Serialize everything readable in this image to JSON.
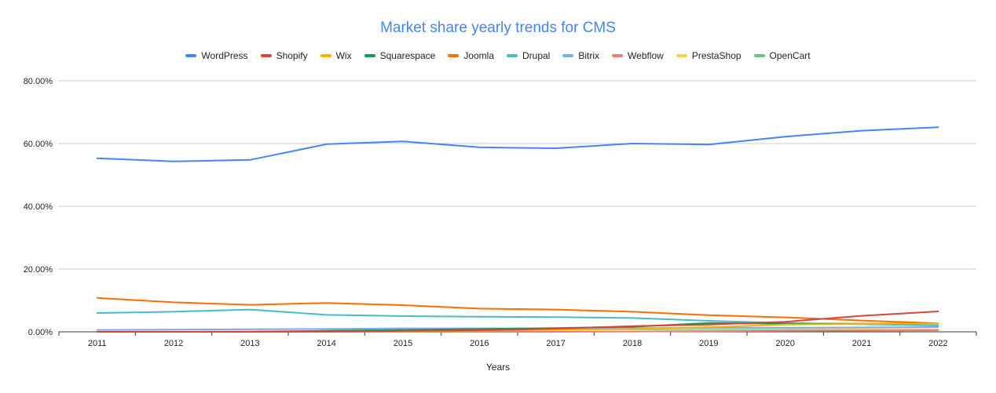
{
  "chart_data": {
    "type": "line",
    "title": "Market share yearly trends for CMS",
    "xlabel": "Years",
    "ylabel": "",
    "x": [
      "2011",
      "2012",
      "2013",
      "2014",
      "2015",
      "2016",
      "2017",
      "2018",
      "2019",
      "2020",
      "2021",
      "2022"
    ],
    "ylim": [
      0,
      80
    ],
    "yticks": [
      0,
      20,
      40,
      60,
      80
    ],
    "ytick_labels": [
      "0.00%",
      "20.00%",
      "40.00%",
      "60.00%",
      "80.00%"
    ],
    "grid": true,
    "legend": "top-center",
    "series": [
      {
        "name": "WordPress",
        "color": "#4285F4",
        "values": [
          55.3,
          54.3,
          54.8,
          59.8,
          60.7,
          58.8,
          58.5,
          60.0,
          59.7,
          62.2,
          64.1,
          65.2
        ]
      },
      {
        "name": "Shopify",
        "color": "#DB4437",
        "values": [
          0.0,
          0.0,
          0.0,
          0.1,
          0.3,
          0.5,
          1.0,
          1.8,
          2.3,
          3.2,
          5.1,
          6.5
        ]
      },
      {
        "name": "Wix",
        "color": "#F4B400",
        "values": [
          0.0,
          0.0,
          0.0,
          0.1,
          0.2,
          0.4,
          0.6,
          0.9,
          1.5,
          2.3,
          2.5,
          2.6
        ]
      },
      {
        "name": "Squarespace",
        "color": "#0F9D58",
        "values": [
          0.0,
          0.0,
          0.0,
          0.3,
          0.6,
          0.9,
          1.2,
          1.6,
          2.8,
          2.6,
          2.6,
          2.6
        ]
      },
      {
        "name": "Joomla",
        "color": "#FF6D01",
        "values": [
          10.8,
          9.4,
          8.6,
          9.2,
          8.5,
          7.4,
          7.1,
          6.4,
          5.3,
          4.6,
          3.6,
          2.7
        ]
      },
      {
        "name": "Drupal",
        "color": "#46BDC6",
        "values": [
          6.0,
          6.4,
          7.1,
          5.4,
          5.0,
          4.8,
          4.7,
          4.4,
          3.5,
          2.8,
          2.4,
          2.0
        ]
      },
      {
        "name": "Bitrix",
        "color": "#7BAAF7",
        "values": [
          0.6,
          0.7,
          0.8,
          0.9,
          1.1,
          1.1,
          1.1,
          1.2,
          1.3,
          1.3,
          1.4,
          1.5
        ]
      },
      {
        "name": "Webflow",
        "color": "#F07B72",
        "values": [
          0.0,
          0.0,
          0.0,
          0.0,
          0.0,
          0.0,
          0.0,
          0.1,
          0.2,
          0.3,
          0.4,
          0.5
        ]
      },
      {
        "name": "PrestaShop",
        "color": "#FCD04F",
        "values": [
          0.6,
          0.7,
          0.8,
          0.9,
          1.0,
          1.0,
          1.1,
          1.1,
          1.0,
          1.0,
          0.9,
          0.8
        ]
      },
      {
        "name": "OpenCart",
        "color": "#71C287",
        "values": [
          0.0,
          0.0,
          0.1,
          0.3,
          0.6,
          0.8,
          0.9,
          0.8,
          0.8,
          0.8,
          0.7,
          0.7
        ]
      }
    ]
  }
}
